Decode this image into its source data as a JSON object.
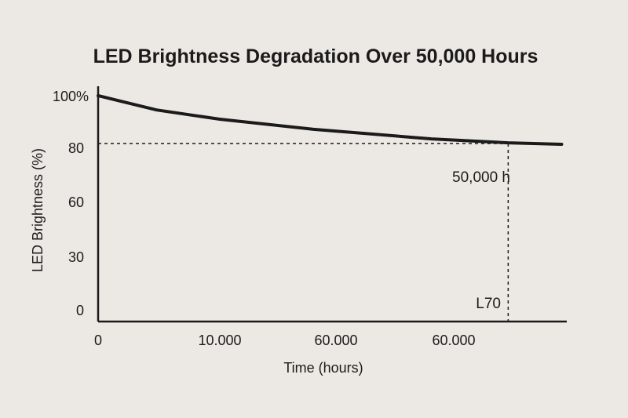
{
  "chart_data": {
    "type": "line",
    "title": "LED Brightness Degradation Over 50,000 Hours",
    "xlabel": "Time (hours)",
    "ylabel": "LED Brightness (%)",
    "x_tick_labels": [
      "0",
      "10.000",
      "60.000",
      "60.000"
    ],
    "y_tick_labels": [
      "0",
      "30",
      "60",
      "80",
      "100%"
    ],
    "grid": false,
    "legend": "none",
    "series": [
      {
        "x": [
          0,
          4800,
          10000,
          17700,
          27400,
          33700,
          38100
        ],
        "y": [
          100,
          94.5,
          90.9,
          87,
          83.3,
          81.8,
          81.2
        ]
      }
    ],
    "reference_lines": {
      "horizontal_y": 81.5,
      "vertical_x": 33700
    },
    "annotations": [
      "50,000 h",
      "L70"
    ],
    "colors": {
      "line": "#1b1b1b",
      "background": "#ece9e4"
    }
  }
}
